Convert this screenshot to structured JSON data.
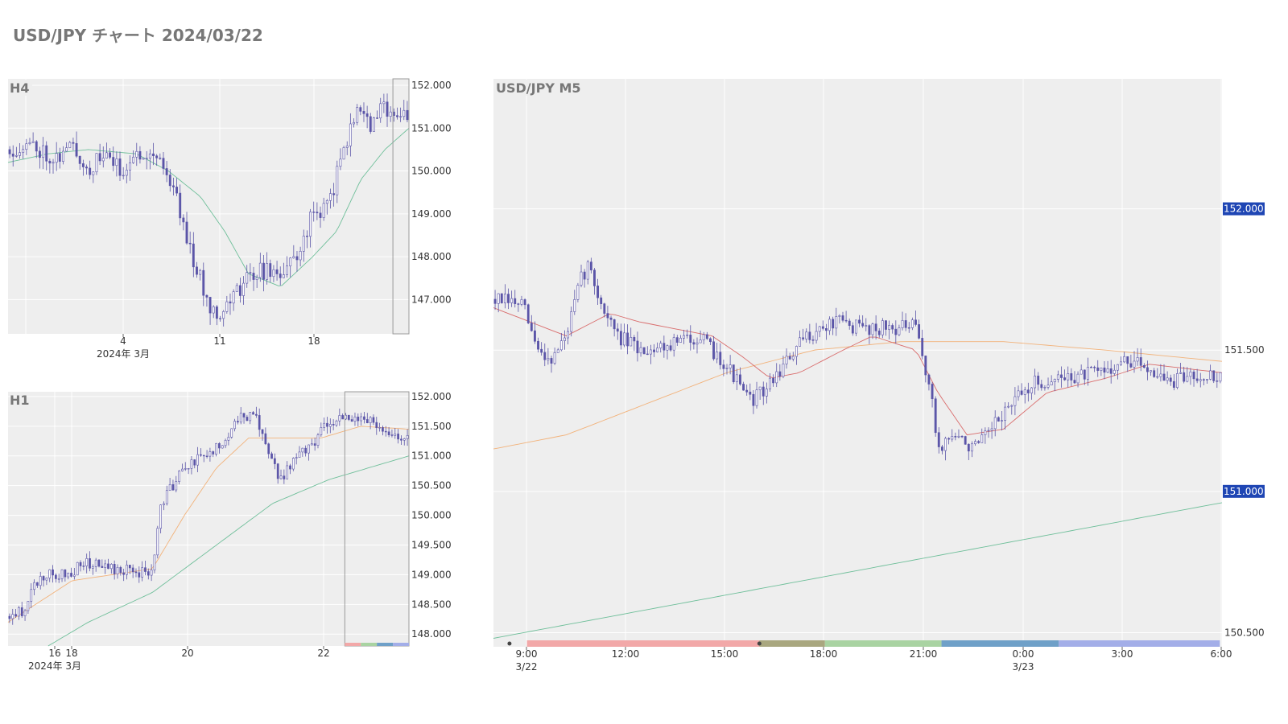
{
  "page": {
    "title": "USD/JPY チャート 2024/03/22"
  },
  "colors": {
    "plot_bg": "#eeeeee",
    "grid": "#ffffff",
    "candle": "#5b55a8",
    "ma_green": "#6fbf9a",
    "ma_orange": "#f2b27a",
    "ma_red": "#d96c6c",
    "price_tag": "#1f46b4",
    "range_box": "#999999"
  },
  "chart_data": [
    {
      "id": "h4",
      "label": "H4",
      "type": "candlestick",
      "y_ticks": [
        "152.000",
        "151.000",
        "150.000",
        "149.000",
        "148.000",
        "147.000"
      ],
      "y_tick_values": [
        152,
        151,
        150,
        149,
        148,
        147
      ],
      "ylim": [
        146.2,
        152.15
      ],
      "x_ticks": [
        "4",
        "11",
        "18"
      ],
      "x_tick_sub": "2024年 3月",
      "path_anchors": [
        [
          0,
          150.5
        ],
        [
          0.06,
          150.6
        ],
        [
          0.12,
          150.3
        ],
        [
          0.16,
          150.6
        ],
        [
          0.2,
          150.0
        ],
        [
          0.24,
          150.4
        ],
        [
          0.28,
          150.0
        ],
        [
          0.34,
          150.5
        ],
        [
          0.38,
          150.3
        ],
        [
          0.42,
          149.4
        ],
        [
          0.46,
          148.0
        ],
        [
          0.5,
          146.9
        ],
        [
          0.53,
          146.7
        ],
        [
          0.58,
          147.3
        ],
        [
          0.62,
          147.7
        ],
        [
          0.68,
          147.6
        ],
        [
          0.72,
          148.0
        ],
        [
          0.76,
          149.0
        ],
        [
          0.8,
          149.2
        ],
        [
          0.84,
          150.6
        ],
        [
          0.88,
          151.6
        ],
        [
          0.9,
          151.0
        ],
        [
          0.94,
          151.5
        ],
        [
          0.98,
          151.3
        ],
        [
          1.0,
          151.4
        ]
      ],
      "ma_green_anchors": [
        [
          0,
          150.2
        ],
        [
          0.1,
          150.4
        ],
        [
          0.2,
          150.5
        ],
        [
          0.32,
          150.4
        ],
        [
          0.4,
          150.0
        ],
        [
          0.48,
          149.4
        ],
        [
          0.54,
          148.6
        ],
        [
          0.6,
          147.6
        ],
        [
          0.68,
          147.3
        ],
        [
          0.76,
          148.0
        ],
        [
          0.82,
          148.6
        ],
        [
          0.88,
          149.8
        ],
        [
          0.94,
          150.5
        ],
        [
          1.0,
          151.0
        ]
      ],
      "range_box": [
        0.96,
        1.0
      ]
    },
    {
      "id": "h1",
      "label": "H1",
      "type": "candlestick",
      "y_ticks": [
        "152.000",
        "151.500",
        "151.000",
        "150.500",
        "150.000",
        "149.500",
        "149.000",
        "148.500",
        "148.000"
      ],
      "y_tick_values": [
        152,
        151.5,
        151,
        150.5,
        150,
        149.5,
        149,
        148.5,
        148
      ],
      "ylim": [
        147.8,
        152.08
      ],
      "x_ticks": [
        "16",
        "18",
        "20",
        "22"
      ],
      "x_tick_sub": "2024年 3月",
      "path_anchors": [
        [
          0,
          148.3
        ],
        [
          0.04,
          148.4
        ],
        [
          0.06,
          148.8
        ],
        [
          0.1,
          149.0
        ],
        [
          0.14,
          149.0
        ],
        [
          0.2,
          149.2
        ],
        [
          0.24,
          149.1
        ],
        [
          0.28,
          149.1
        ],
        [
          0.36,
          149.0
        ],
        [
          0.38,
          150.2
        ],
        [
          0.42,
          150.6
        ],
        [
          0.46,
          150.9
        ],
        [
          0.5,
          151.0
        ],
        [
          0.54,
          151.3
        ],
        [
          0.58,
          151.7
        ],
        [
          0.62,
          151.6
        ],
        [
          0.64,
          151.2
        ],
        [
          0.68,
          150.6
        ],
        [
          0.72,
          151.0
        ],
        [
          0.76,
          151.2
        ],
        [
          0.8,
          151.6
        ],
        [
          0.84,
          151.6
        ],
        [
          0.88,
          151.7
        ],
        [
          0.92,
          151.5
        ],
        [
          0.96,
          151.3
        ],
        [
          1.0,
          151.4
        ]
      ],
      "ma_green_anchors": [
        [
          0.1,
          147.8
        ],
        [
          0.2,
          148.2
        ],
        [
          0.36,
          148.7
        ],
        [
          0.5,
          149.4
        ],
        [
          0.66,
          150.2
        ],
        [
          0.8,
          150.6
        ],
        [
          0.9,
          150.8
        ],
        [
          1.0,
          151.0
        ]
      ],
      "ma_orange_anchors": [
        [
          0,
          148.2
        ],
        [
          0.16,
          148.9
        ],
        [
          0.36,
          149.1
        ],
        [
          0.44,
          150.0
        ],
        [
          0.52,
          150.8
        ],
        [
          0.6,
          151.3
        ],
        [
          0.68,
          151.3
        ],
        [
          0.78,
          151.3
        ],
        [
          0.88,
          151.5
        ],
        [
          1.0,
          151.45
        ]
      ],
      "range_box": [
        0.84,
        1.0
      ]
    },
    {
      "id": "m5",
      "label": "USD/JPY M5",
      "type": "candlestick",
      "y_ticks": [
        "151.500",
        "150.500"
      ],
      "y_tick_values": [
        151.5,
        150.5
      ],
      "price_tags": [
        "152.000",
        "151.000"
      ],
      "price_tag_values": [
        152.0,
        151.0
      ],
      "ylim": [
        150.45,
        152.46
      ],
      "x_ticks": [
        "9:00",
        "12:00",
        "15:00",
        "18:00",
        "21:00",
        "0:00",
        "3:00",
        "6:00"
      ],
      "x_tick_sub": [
        "3/22",
        "3/23"
      ],
      "path_anchors": [
        [
          0,
          151.68
        ],
        [
          0.04,
          151.66
        ],
        [
          0.06,
          151.5
        ],
        [
          0.08,
          151.47
        ],
        [
          0.1,
          151.55
        ],
        [
          0.12,
          151.75
        ],
        [
          0.13,
          151.8
        ],
        [
          0.15,
          151.65
        ],
        [
          0.17,
          151.55
        ],
        [
          0.2,
          151.5
        ],
        [
          0.24,
          151.52
        ],
        [
          0.28,
          151.55
        ],
        [
          0.32,
          151.45
        ],
        [
          0.35,
          151.32
        ],
        [
          0.37,
          151.35
        ],
        [
          0.4,
          151.45
        ],
        [
          0.43,
          151.55
        ],
        [
          0.47,
          151.6
        ],
        [
          0.5,
          151.58
        ],
        [
          0.58,
          151.58
        ],
        [
          0.6,
          151.35
        ],
        [
          0.61,
          151.15
        ],
        [
          0.63,
          151.2
        ],
        [
          0.66,
          151.15
        ],
        [
          0.68,
          151.2
        ],
        [
          0.7,
          151.28
        ],
        [
          0.74,
          151.38
        ],
        [
          0.78,
          151.4
        ],
        [
          0.83,
          151.42
        ],
        [
          0.87,
          151.46
        ],
        [
          0.9,
          151.44
        ],
        [
          0.93,
          151.38
        ],
        [
          0.96,
          151.42
        ],
        [
          1.0,
          151.4
        ]
      ],
      "ma_red_anchors": [
        [
          0,
          151.65
        ],
        [
          0.1,
          151.55
        ],
        [
          0.16,
          151.63
        ],
        [
          0.2,
          151.6
        ],
        [
          0.3,
          151.55
        ],
        [
          0.34,
          151.48
        ],
        [
          0.38,
          151.4
        ],
        [
          0.42,
          151.42
        ],
        [
          0.48,
          151.5
        ],
        [
          0.52,
          151.55
        ],
        [
          0.58,
          151.5
        ],
        [
          0.61,
          151.35
        ],
        [
          0.65,
          151.2
        ],
        [
          0.7,
          151.22
        ],
        [
          0.76,
          151.35
        ],
        [
          0.84,
          151.4
        ],
        [
          0.9,
          151.45
        ],
        [
          1.0,
          151.42
        ]
      ],
      "ma_orange_anchors": [
        [
          0,
          151.15
        ],
        [
          0.1,
          151.2
        ],
        [
          0.2,
          151.3
        ],
        [
          0.32,
          151.42
        ],
        [
          0.44,
          151.5
        ],
        [
          0.56,
          151.53
        ],
        [
          0.7,
          151.53
        ],
        [
          0.84,
          151.5
        ],
        [
          1.0,
          151.46
        ]
      ],
      "ma_green_anchors": [
        [
          0,
          150.48
        ],
        [
          1.0,
          150.96
        ]
      ],
      "session_bar": [
        "#f2a8a8",
        "#a9a77f",
        "#a9d3a2",
        "#6fa0c8",
        "#a3aee8"
      ]
    }
  ]
}
